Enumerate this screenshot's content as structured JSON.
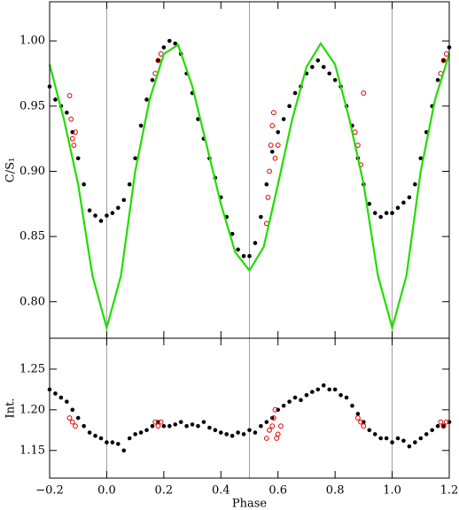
{
  "chart_data": [
    {
      "type": "scatter",
      "ylabel": "C/S₁",
      "xlim": [
        -0.2,
        1.2
      ],
      "ylim": [
        0.772,
        1.03
      ],
      "xticks": [
        -0.2,
        0,
        0.2,
        0.4,
        0.6,
        0.8,
        1.0,
        1.2
      ],
      "yticks": [
        {
          "value": 0.8,
          "label": "0.80"
        },
        {
          "value": 0.85,
          "label": "0.85"
        },
        {
          "value": 0.9,
          "label": "0.90"
        },
        {
          "value": 0.95,
          "label": "0.95"
        },
        {
          "value": 1.0,
          "label": "1.00"
        }
      ],
      "vlines": [
        0,
        0.5,
        1.0
      ],
      "series": [
        {
          "mode": "points",
          "marker": "filled",
          "color": "#000000",
          "x": [
            -0.2,
            -0.18,
            -0.16,
            -0.14,
            -0.12,
            -0.1,
            -0.08,
            -0.06,
            -0.04,
            -0.02,
            0,
            0.02,
            0.04,
            0.06,
            0.08,
            0.1,
            0.12,
            0.14,
            0.16,
            0.18,
            0.2,
            0.22,
            0.24,
            0.26,
            0.28,
            0.3,
            0.32,
            0.34,
            0.36,
            0.38,
            0.4,
            0.42,
            0.44,
            0.46,
            0.48,
            0.5,
            0.52,
            0.54,
            0.56,
            0.58,
            0.6,
            0.62,
            0.64,
            0.66,
            0.68,
            0.7,
            0.72,
            0.74,
            0.76,
            0.78,
            0.8,
            0.82,
            0.84,
            0.86,
            0.88,
            0.9,
            0.92,
            0.94,
            0.96,
            0.98,
            1.0,
            1.02,
            1.04,
            1.06,
            1.08,
            1.1,
            1.12,
            1.14,
            1.16,
            1.18,
            1.2
          ],
          "values": [
            0.965,
            0.955,
            0.95,
            0.945,
            0.93,
            0.91,
            0.89,
            0.87,
            0.866,
            0.862,
            0.866,
            0.868,
            0.872,
            0.878,
            0.89,
            0.91,
            0.935,
            0.955,
            0.97,
            0.985,
            0.995,
            1.0,
            0.998,
            0.99,
            0.975,
            0.96,
            0.94,
            0.925,
            0.91,
            0.895,
            0.88,
            0.865,
            0.852,
            0.84,
            0.835,
            0.835,
            0.845,
            0.865,
            0.89,
            0.915,
            0.93,
            0.94,
            0.95,
            0.96,
            0.965,
            0.975,
            0.98,
            0.985,
            0.98,
            0.975,
            0.97,
            0.965,
            0.95,
            0.935,
            0.91,
            0.89,
            0.875,
            0.868,
            0.865,
            0.868,
            0.868,
            0.872,
            0.876,
            0.88,
            0.89,
            0.91,
            0.93,
            0.95,
            0.97,
            0.985,
            0.995
          ]
        },
        {
          "mode": "points",
          "marker": "open",
          "color": "#e00000",
          "x": [
            -0.13,
            -0.125,
            -0.12,
            -0.115,
            -0.11,
            0.17,
            0.18,
            0.19,
            0.56,
            0.565,
            0.57,
            0.575,
            0.58,
            0.585,
            0.59,
            0.6,
            0.87,
            0.88,
            0.89,
            0.9,
            1.17,
            1.18,
            1.19
          ],
          "values": [
            0.958,
            0.94,
            0.925,
            0.92,
            0.93,
            0.975,
            0.985,
            0.99,
            0.86,
            0.88,
            0.9,
            0.92,
            0.935,
            0.945,
            0.91,
            0.92,
            0.93,
            0.92,
            0.905,
            0.96,
            0.975,
            0.985,
            0.99
          ]
        },
        {
          "mode": "line",
          "color": "#22dd00",
          "x": [
            -0.2,
            -0.15,
            -0.1,
            -0.05,
            0,
            0.05,
            0.1,
            0.15,
            0.2,
            0.25,
            0.3,
            0.35,
            0.4,
            0.45,
            0.5,
            0.55,
            0.6,
            0.65,
            0.7,
            0.75,
            0.8,
            0.85,
            0.9,
            0.95,
            1.0,
            1.05,
            1.1,
            1.15,
            1.2
          ],
          "values": [
            0.982,
            0.94,
            0.89,
            0.82,
            0.78,
            0.82,
            0.9,
            0.955,
            0.99,
            0.997,
            0.965,
            0.92,
            0.875,
            0.838,
            0.824,
            0.842,
            0.89,
            0.94,
            0.98,
            0.998,
            0.982,
            0.94,
            0.89,
            0.82,
            0.78,
            0.82,
            0.9,
            0.955,
            0.99
          ]
        }
      ]
    },
    {
      "type": "scatter",
      "ylabel": "Int.",
      "xlabel": "Phase",
      "xlim": [
        -0.2,
        1.2
      ],
      "ylim": [
        1.116,
        1.288
      ],
      "xticks": [
        {
          "value": -0.2,
          "label": "−0.2"
        },
        {
          "value": 0,
          "label": "0.0"
        },
        {
          "value": 0.2,
          "label": "0.2"
        },
        {
          "value": 0.4,
          "label": "0.4"
        },
        {
          "value": 0.6,
          "label": "0.6"
        },
        {
          "value": 0.8,
          "label": "0.8"
        },
        {
          "value": 1.0,
          "label": "1.0"
        },
        {
          "value": 1.2,
          "label": "1.2"
        }
      ],
      "yticks": [
        {
          "value": 1.15,
          "label": "1.15"
        },
        {
          "value": 1.2,
          "label": "1.20"
        },
        {
          "value": 1.25,
          "label": "1.25"
        }
      ],
      "vlines": [
        0,
        0.5,
        1.0
      ],
      "series": [
        {
          "mode": "points",
          "marker": "filled",
          "color": "#000000",
          "x": [
            -0.2,
            -0.18,
            -0.16,
            -0.14,
            -0.12,
            -0.1,
            -0.08,
            -0.06,
            -0.04,
            -0.02,
            0,
            0.02,
            0.04,
            0.06,
            0.08,
            0.1,
            0.12,
            0.14,
            0.16,
            0.18,
            0.2,
            0.22,
            0.24,
            0.26,
            0.28,
            0.3,
            0.32,
            0.34,
            0.36,
            0.38,
            0.4,
            0.42,
            0.44,
            0.46,
            0.48,
            0.5,
            0.52,
            0.54,
            0.56,
            0.58,
            0.6,
            0.62,
            0.64,
            0.66,
            0.68,
            0.7,
            0.72,
            0.74,
            0.76,
            0.78,
            0.8,
            0.82,
            0.84,
            0.86,
            0.88,
            0.9,
            0.92,
            0.94,
            0.96,
            0.98,
            1.0,
            1.02,
            1.04,
            1.06,
            1.08,
            1.1,
            1.12,
            1.14,
            1.16,
            1.18,
            1.2
          ],
          "values": [
            1.225,
            1.22,
            1.215,
            1.21,
            1.2,
            1.19,
            1.18,
            1.172,
            1.168,
            1.165,
            1.16,
            1.16,
            1.158,
            1.15,
            1.165,
            1.17,
            1.172,
            1.175,
            1.18,
            1.185,
            1.18,
            1.18,
            1.182,
            1.185,
            1.18,
            1.182,
            1.18,
            1.185,
            1.178,
            1.175,
            1.172,
            1.17,
            1.168,
            1.172,
            1.17,
            1.175,
            1.172,
            1.18,
            1.185,
            1.19,
            1.2,
            1.205,
            1.21,
            1.215,
            1.212,
            1.218,
            1.222,
            1.225,
            1.23,
            1.225,
            1.225,
            1.218,
            1.215,
            1.205,
            1.195,
            1.185,
            1.175,
            1.17,
            1.165,
            1.165,
            1.16,
            1.165,
            1.162,
            1.155,
            1.16,
            1.165,
            1.17,
            1.175,
            1.18,
            1.18,
            1.185
          ]
        },
        {
          "mode": "points",
          "marker": "open",
          "color": "#e00000",
          "x": [
            -0.13,
            -0.12,
            -0.11,
            0.17,
            0.18,
            0.19,
            0.56,
            0.57,
            0.58,
            0.585,
            0.59,
            0.595,
            0.6,
            0.61,
            0.88,
            0.89,
            0.9,
            1.17,
            1.18,
            1.19
          ],
          "values": [
            1.19,
            1.185,
            1.18,
            1.185,
            1.18,
            1.185,
            1.165,
            1.175,
            1.18,
            1.19,
            1.2,
            1.165,
            1.17,
            1.18,
            1.19,
            1.185,
            1.18,
            1.185,
            1.18,
            1.185
          ]
        }
      ]
    }
  ]
}
